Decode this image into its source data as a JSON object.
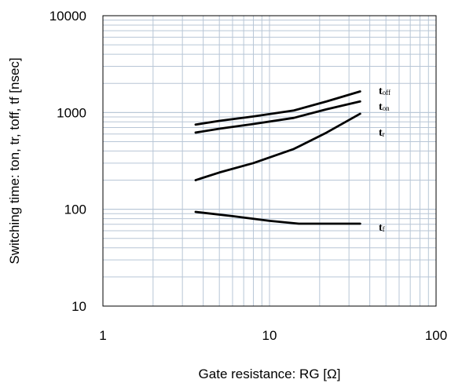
{
  "chart_data": {
    "type": "line",
    "x_scale": "log",
    "y_scale": "log",
    "xlim": [
      1,
      100
    ],
    "ylim": [
      10,
      10000
    ],
    "x_ticks": [
      {
        "value": 1,
        "label": "1"
      },
      {
        "value": 10,
        "label": "10"
      },
      {
        "value": 100,
        "label": "100"
      }
    ],
    "y_ticks": [
      {
        "value": 10,
        "label": "10"
      },
      {
        "value": 100,
        "label": "100"
      },
      {
        "value": 1000,
        "label": "1000"
      },
      {
        "value": 10000,
        "label": "10000"
      }
    ],
    "xlabel": "Gate resistance: RG [Ω]",
    "ylabel": "Switching time:  ton, tr, toff, tf  [nsec]",
    "grid": true,
    "grid_color": "#b8c6d6",
    "line_color": "#000000",
    "series": [
      {
        "name": "toff",
        "label_main": "t",
        "label_sub": "off",
        "x": [
          3.6,
          5,
          8,
          14,
          22,
          35
        ],
        "y": [
          750,
          820,
          910,
          1050,
          1300,
          1650
        ]
      },
      {
        "name": "ton",
        "label_main": "t",
        "label_sub": "on",
        "x": [
          3.6,
          5,
          8,
          14,
          22,
          35
        ],
        "y": [
          620,
          680,
          760,
          880,
          1080,
          1300
        ]
      },
      {
        "name": "tr",
        "label_main": "t",
        "label_sub": "r",
        "x": [
          3.6,
          5,
          8,
          14,
          22,
          35
        ],
        "y": [
          200,
          240,
          300,
          420,
          620,
          970
        ]
      },
      {
        "name": "tf",
        "label_main": "t",
        "label_sub": "f",
        "x": [
          3.6,
          6,
          10,
          15,
          25,
          35
        ],
        "y": [
          94,
          85,
          76,
          71,
          71,
          71
        ]
      }
    ]
  }
}
